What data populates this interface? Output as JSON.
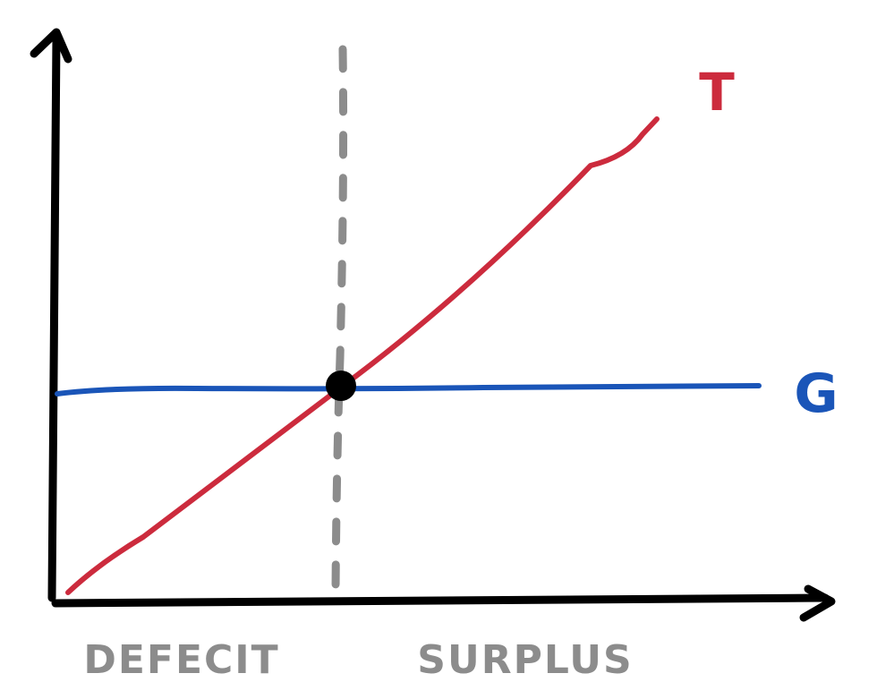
{
  "labels": {
    "tax_line": "T",
    "spending_line": "G",
    "left_region": "DEFECIT",
    "right_region": "SURPLUS"
  },
  "colors": {
    "axes": "#000000",
    "tax_line": "#cc2b3d",
    "spending_line": "#1a55b8",
    "divider": "#8c8c8c",
    "region_text": "#8c8c8c",
    "intersection_point": "#000000"
  }
}
